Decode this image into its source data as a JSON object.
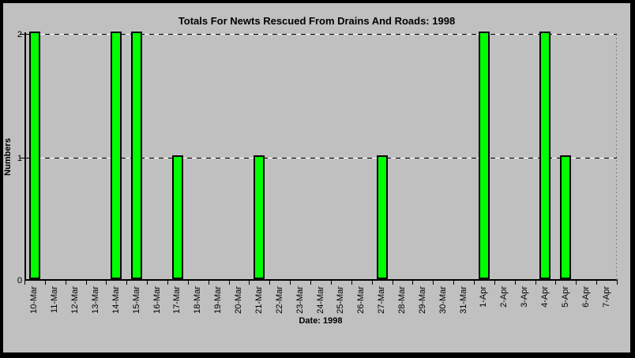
{
  "chart_data": {
    "type": "bar",
    "title": "Totals For Newts Rescued From Drains And Roads: 1998",
    "xlabel": "Date: 1998",
    "ylabel": "Numbers",
    "categories": [
      "10-Mar",
      "11-Mar",
      "12-Mar",
      "13-Mar",
      "14-Mar",
      "15-Mar",
      "16-Mar",
      "17-Mar",
      "18-Mar",
      "19-Mar",
      "20-Mar",
      "21-Mar",
      "22-Mar",
      "23-Mar",
      "24-Mar",
      "25-Mar",
      "26-Mar",
      "27-Mar",
      "28-Mar",
      "29-Mar",
      "30-Mar",
      "31-Mar",
      "1-Apr",
      "2-Apr",
      "3-Apr",
      "4-Apr",
      "5-Apr",
      "6-Apr",
      "7-Apr"
    ],
    "values": [
      2,
      0,
      0,
      0,
      2,
      2,
      0,
      1,
      0,
      0,
      0,
      1,
      0,
      0,
      0,
      0,
      0,
      1,
      0,
      0,
      0,
      0,
      2,
      0,
      0,
      2,
      1,
      0,
      0
    ],
    "ylim": [
      0,
      2
    ],
    "yticks": [
      "0",
      "1",
      "2"
    ],
    "gridlines_at": [
      1,
      2
    ],
    "legend": "none",
    "grid": true,
    "colors": {
      "bar_fill": "#00FF00",
      "bar_border": "#000000",
      "background": "#C0C0C0",
      "frame": "#000000",
      "axis": "#000000",
      "gridline_dash_dark": "#000000",
      "gridline_dash_light": "#FFFFFF",
      "plot_right_edge": "#808080",
      "text": "#000000"
    }
  }
}
